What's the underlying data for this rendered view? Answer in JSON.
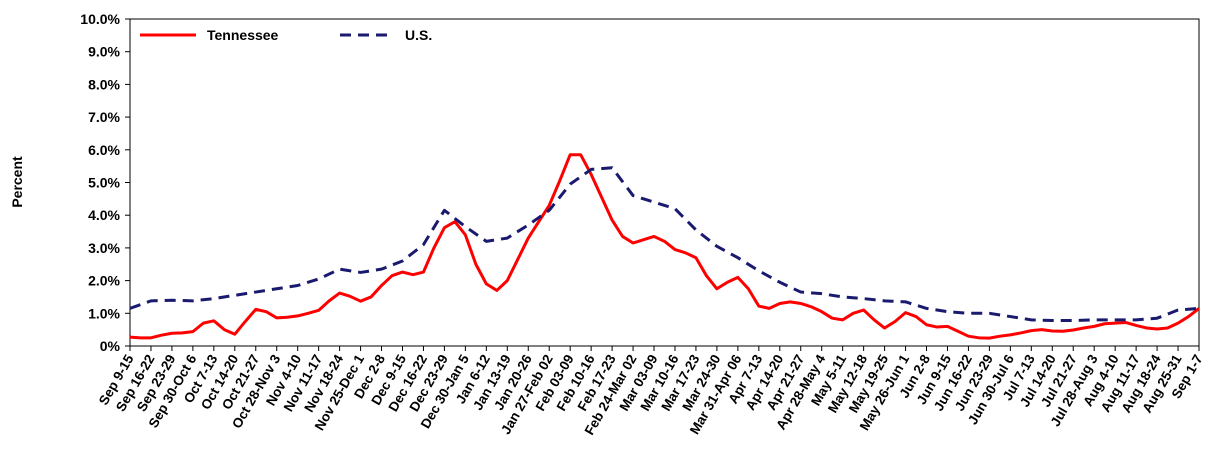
{
  "chart_data": {
    "type": "line",
    "title": "",
    "xlabel": "",
    "ylabel": "Percent",
    "ylim": [
      0,
      10
    ],
    "y_tick_values": [
      0,
      1,
      2,
      3,
      4,
      5,
      6,
      7,
      8,
      9,
      10
    ],
    "y_tick_labels": [
      "0%",
      "1.0%",
      "2.0%",
      "3.0%",
      "4.0%",
      "5.0%",
      "6.0%",
      "7.0%",
      "8.0%",
      "9.0%",
      "10.0%"
    ],
    "grid": false,
    "legend_position": "top-left",
    "categories": [
      "Sep 9-15",
      "Sep 16-22",
      "Sep 23-29",
      "Sep 30-Oct 6",
      "Oct 7-13",
      "Oct 14-20",
      "Oct 21-27",
      "Oct 28-Nov 3",
      "Nov 4-10",
      "Nov 11-17",
      "Nov 18-24",
      "Nov 25-Dec 1",
      "Dec 2-8",
      "Dec 9-15",
      "Dec 16-22",
      "Dec 23-29",
      "Dec 30-Jan 5",
      "Jan 6-12",
      "Jan 13-19",
      "Jan 20-26",
      "Jan 27-Feb 02",
      "Feb 03-09",
      "Feb 10-16",
      "Feb 17-23",
      "Feb 24-Mar 02",
      "Mar 03-09",
      "Mar 10-16",
      "Mar 17-23",
      "Mar 24-30",
      "Mar 31-Apr 06",
      "Apr 7-13",
      "Apr 14-20",
      "Apr 21-27",
      "Apr 28-May 4",
      "May 5-11",
      "May 12-18",
      "May 19-25",
      "May 26-Jun 1",
      "Jun 2-8",
      "Jun 9-15",
      "Jun 16-22",
      "Jun 23-29",
      "Jun 30-Jul 6",
      "Jul 7-13",
      "Jul 14-20",
      "Jul 21-27",
      "Jul 28-Aug 3",
      "Aug 4-10",
      "Aug 11-17",
      "Aug 18-24",
      "Aug 25-31",
      "Sep 1-7"
    ],
    "series": [
      {
        "name": "Tennessee",
        "color": "#ff0000",
        "style": "solid",
        "x": [
          0,
          0.5,
          1,
          1.5,
          2,
          2.5,
          3,
          3.5,
          4,
          4.5,
          5,
          5.5,
          6,
          6.5,
          7,
          7.5,
          8,
          8.5,
          9,
          9.5,
          10,
          10.5,
          11,
          11.5,
          12,
          12.5,
          13,
          13.5,
          14,
          14.5,
          15,
          15.5,
          16,
          16.5,
          17,
          17.5,
          18,
          18.5,
          19,
          19.5,
          20,
          20.5,
          21,
          21.5,
          22,
          22.5,
          23,
          23.5,
          24,
          24.5,
          25,
          25.5,
          26,
          26.5,
          27,
          27.5,
          28,
          28.5,
          29,
          29.5,
          30,
          30.5,
          31,
          31.5,
          32,
          32.5,
          33,
          33.5,
          34,
          34.5,
          35,
          35.5,
          36,
          36.5,
          37,
          37.5,
          38,
          38.5,
          39,
          39.5,
          40,
          40.5,
          41,
          41.5,
          42,
          42.5,
          43,
          43.5,
          44,
          44.5,
          45,
          45.5,
          46,
          46.5,
          47,
          47.5,
          48,
          48.5,
          49,
          49.5,
          50,
          50.5,
          51
        ],
        "values": [
          0.27,
          0.25,
          0.25,
          0.33,
          0.39,
          0.4,
          0.44,
          0.7,
          0.77,
          0.5,
          0.36,
          0.75,
          1.12,
          1.05,
          0.86,
          0.88,
          0.92,
          1.0,
          1.09,
          1.38,
          1.62,
          1.52,
          1.37,
          1.5,
          1.85,
          2.15,
          2.26,
          2.18,
          2.26,
          3.0,
          3.62,
          3.8,
          3.4,
          2.5,
          1.9,
          1.7,
          2.0,
          2.65,
          3.3,
          3.8,
          4.3,
          5.05,
          5.85,
          5.85,
          5.25,
          4.55,
          3.85,
          3.35,
          3.15,
          3.25,
          3.35,
          3.2,
          2.95,
          2.85,
          2.7,
          2.15,
          1.75,
          1.95,
          2.1,
          1.75,
          1.22,
          1.15,
          1.3,
          1.35,
          1.3,
          1.2,
          1.05,
          0.85,
          0.8,
          1.0,
          1.1,
          0.8,
          0.55,
          0.75,
          1.02,
          0.9,
          0.65,
          0.58,
          0.6,
          0.45,
          0.3,
          0.25,
          0.24,
          0.3,
          0.34,
          0.4,
          0.47,
          0.5,
          0.46,
          0.45,
          0.49,
          0.55,
          0.6,
          0.68,
          0.7,
          0.72,
          0.63,
          0.55,
          0.52,
          0.55,
          0.7,
          0.9,
          1.15
        ]
      },
      {
        "name": "U.S.",
        "color": "#1a1a6e",
        "style": "dashed",
        "x": [
          0,
          1,
          2,
          3,
          4,
          5,
          6,
          7,
          8,
          9,
          10,
          11,
          12,
          13,
          14,
          15,
          16,
          17,
          18,
          19,
          20,
          21,
          22,
          23,
          24,
          25,
          26,
          27,
          28,
          29,
          30,
          31,
          32,
          33,
          34,
          35,
          36,
          37,
          38,
          39,
          40,
          41,
          42,
          43,
          44,
          45,
          46,
          47,
          48,
          49,
          50,
          51
        ],
        "values": [
          1.15,
          1.38,
          1.4,
          1.38,
          1.45,
          1.55,
          1.65,
          1.75,
          1.85,
          2.05,
          2.35,
          2.25,
          2.35,
          2.6,
          3.1,
          4.15,
          3.65,
          3.2,
          3.3,
          3.7,
          4.15,
          4.95,
          5.4,
          5.45,
          4.6,
          4.4,
          4.2,
          3.55,
          3.05,
          2.7,
          2.3,
          1.95,
          1.65,
          1.6,
          1.5,
          1.45,
          1.38,
          1.35,
          1.15,
          1.05,
          1.0,
          1.0,
          0.9,
          0.8,
          0.78,
          0.78,
          0.8,
          0.8,
          0.8,
          0.85,
          1.1,
          1.15
        ]
      }
    ]
  }
}
